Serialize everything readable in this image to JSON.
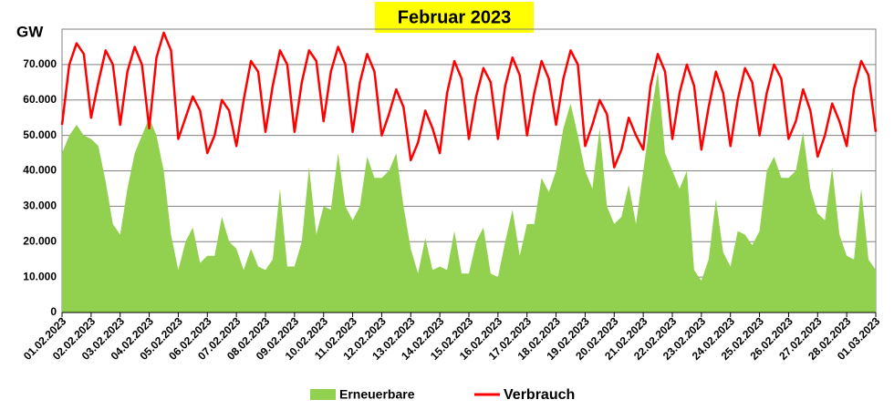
{
  "chart_data": {
    "type": "area_line",
    "title": "Februar 2023",
    "ylabel": "GW",
    "x": [
      0,
      0.25,
      0.5,
      0.75,
      1,
      1.25,
      1.5,
      1.75,
      2,
      2.25,
      2.5,
      2.75,
      3,
      3.25,
      3.5,
      3.75,
      4,
      4.25,
      4.5,
      4.75,
      5,
      5.25,
      5.5,
      5.75,
      6,
      6.25,
      6.5,
      6.75,
      7,
      7.25,
      7.5,
      7.75,
      8,
      8.25,
      8.5,
      8.75,
      9,
      9.25,
      9.5,
      9.75,
      10,
      10.25,
      10.5,
      10.75,
      11,
      11.25,
      11.5,
      11.75,
      12,
      12.25,
      12.5,
      12.75,
      13,
      13.25,
      13.5,
      13.75,
      14,
      14.25,
      14.5,
      14.75,
      15,
      15.25,
      15.5,
      15.75,
      16,
      16.25,
      16.5,
      16.75,
      17,
      17.25,
      17.5,
      17.75,
      18,
      18.25,
      18.5,
      18.75,
      19,
      19.25,
      19.5,
      19.75,
      20,
      20.25,
      20.5,
      20.75,
      21,
      21.25,
      21.5,
      21.75,
      22,
      22.25,
      22.5,
      22.75,
      23,
      23.25,
      23.5,
      23.75,
      24,
      24.25,
      24.5,
      24.75,
      25,
      25.25,
      25.5,
      25.75,
      26,
      26.25,
      26.5,
      26.75,
      27,
      27.25,
      27.5,
      27.75,
      28
    ],
    "series": [
      {
        "name": "Erneuerbare",
        "color": "#92d050",
        "style": "area",
        "values": [
          45000,
          50000,
          53000,
          50000,
          49000,
          47000,
          37000,
          25000,
          22000,
          35000,
          45000,
          50000,
          55000,
          50000,
          40000,
          22000,
          12000,
          20000,
          24000,
          14000,
          16000,
          16000,
          27000,
          20000,
          18000,
          12000,
          18000,
          13000,
          12000,
          15000,
          35000,
          13000,
          13000,
          20000,
          41000,
          22000,
          30000,
          29000,
          45000,
          30000,
          26000,
          30000,
          44000,
          38000,
          38000,
          40000,
          45000,
          30000,
          18000,
          11000,
          21000,
          12000,
          13000,
          12000,
          23000,
          11000,
          11000,
          20000,
          24000,
          11000,
          10000,
          20000,
          29000,
          16000,
          25000,
          25000,
          38000,
          34000,
          40000,
          52000,
          59000,
          50000,
          40000,
          35000,
          52000,
          30000,
          25000,
          27000,
          36000,
          25000,
          40000,
          55000,
          68000,
          45000,
          40000,
          35000,
          40000,
          12000,
          9000,
          15000,
          32000,
          17000,
          13000,
          23000,
          22000,
          19000,
          23000,
          40000,
          44000,
          38000,
          38000,
          40000,
          51000,
          35000,
          28000,
          26000,
          41000,
          22000,
          16000,
          15000,
          35000,
          15000,
          12000
        ]
      },
      {
        "name": "Verbrauch",
        "color": "#ff0000",
        "style": "line",
        "values": [
          53000,
          70000,
          76000,
          73000,
          55000,
          65000,
          74000,
          70000,
          53000,
          68000,
          75000,
          70000,
          52000,
          72000,
          79000,
          74000,
          49000,
          55000,
          61000,
          57000,
          45000,
          50000,
          60000,
          57000,
          47000,
          60000,
          71000,
          68000,
          51000,
          64000,
          74000,
          70000,
          51000,
          65000,
          74000,
          71000,
          54000,
          68000,
          75000,
          70000,
          51000,
          65000,
          73000,
          68000,
          50000,
          56000,
          63000,
          58000,
          43000,
          48000,
          57000,
          52000,
          45000,
          62000,
          71000,
          66000,
          49000,
          61000,
          69000,
          65000,
          49000,
          64000,
          72000,
          67000,
          50000,
          62000,
          71000,
          66000,
          53000,
          66000,
          74000,
          70000,
          47000,
          53000,
          60000,
          56000,
          41000,
          46000,
          55000,
          50000,
          46000,
          64000,
          73000,
          68000,
          49000,
          62000,
          70000,
          64000,
          46000,
          58000,
          68000,
          62000,
          47000,
          60000,
          69000,
          65000,
          50000,
          62000,
          70000,
          66000,
          49000,
          54000,
          63000,
          57000,
          44000,
          50000,
          59000,
          54000,
          47000,
          63000,
          71000,
          67000,
          51000
        ]
      }
    ],
    "xlim": [
      0,
      28
    ],
    "xticks": [
      {
        "value": 0,
        "label": "01.02.2023"
      },
      {
        "value": 1,
        "label": "02.02.2023"
      },
      {
        "value": 2,
        "label": "03.02.2023"
      },
      {
        "value": 3,
        "label": "04.02.2023"
      },
      {
        "value": 4,
        "label": "05.02.2023"
      },
      {
        "value": 5,
        "label": "06.02.2023"
      },
      {
        "value": 6,
        "label": "07.02.2023"
      },
      {
        "value": 7,
        "label": "08.02.2023"
      },
      {
        "value": 8,
        "label": "09.02.2023"
      },
      {
        "value": 9,
        "label": "10.02.2023"
      },
      {
        "value": 10,
        "label": "11.02.2023"
      },
      {
        "value": 11,
        "label": "12.02.2023"
      },
      {
        "value": 12,
        "label": "13.02.2023"
      },
      {
        "value": 13,
        "label": "14.02.2023"
      },
      {
        "value": 14,
        "label": "15.02.2023"
      },
      {
        "value": 15,
        "label": "16.02.2023"
      },
      {
        "value": 16,
        "label": "17.02.2023"
      },
      {
        "value": 17,
        "label": "18.02.2023"
      },
      {
        "value": 18,
        "label": "19.02.2023"
      },
      {
        "value": 19,
        "label": "20.02.2023"
      },
      {
        "value": 20,
        "label": "21.02.2023"
      },
      {
        "value": 21,
        "label": "22.02.2023"
      },
      {
        "value": 22,
        "label": "23.02.2023"
      },
      {
        "value": 23,
        "label": "24.02.2023"
      },
      {
        "value": 24,
        "label": "25.02.2023"
      },
      {
        "value": 25,
        "label": "26.02.2023"
      },
      {
        "value": 26,
        "label": "27.02.2023"
      },
      {
        "value": 27,
        "label": "28.02.2023"
      },
      {
        "value": 28,
        "label": "01.03.2023"
      }
    ],
    "ylim": [
      0,
      80000
    ],
    "yticks": [
      0,
      {
        "value": 10000,
        "label": "10.000"
      },
      {
        "value": 20000,
        "label": "20.000"
      },
      {
        "value": 30000,
        "label": "30.000"
      },
      {
        "value": 40000,
        "label": "40.000"
      },
      {
        "value": 50000,
        "label": "50.000"
      },
      {
        "value": 60000,
        "label": "60.000"
      },
      {
        "value": 70000,
        "label": "70.000"
      }
    ],
    "grid": true,
    "legend": "bottom"
  }
}
